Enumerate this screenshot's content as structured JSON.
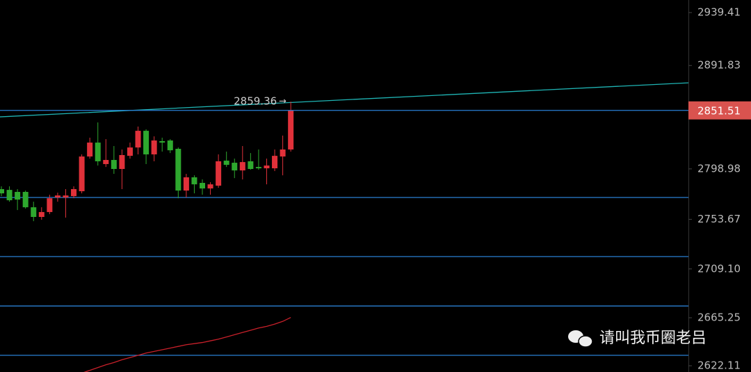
{
  "chart_data": {
    "type": "candlestick",
    "ylim": [
      2616.5,
      2950.7
    ],
    "yticks": [
      2939.41,
      2891.83,
      2798.98,
      2753.67,
      {
        "value": 2709.1,
        "label": "2709.10"
      },
      2665.25,
      2622.11
    ],
    "up_color": "#e0313a",
    "down_color": "#2ea82e",
    "candles": {
      "open": [
        2780.8,
        2780.1,
        2778.3,
        2778.3,
        2764.5,
        2755.8,
        2760.2,
        2773.3,
        2773.3,
        2774.5,
        2778.9,
        2810.1,
        2822.6,
        2803.3,
        2807.0,
        2798.9,
        2810.7,
        2818.2,
        2833.2,
        2812.0,
        2823.9,
        2824.5,
        2817.0,
        2779.5,
        2791.4,
        2786.4,
        2781.4,
        2783.9,
        2806.4,
        2804.5,
        2797.6,
        2805.8,
        2800.7,
        2799.5,
        2799.5,
        2810.1,
        2816.4
      ],
      "high": [
        2783.3,
        2783.3,
        2780.8,
        2779.5,
        2769.5,
        2764.5,
        2775.8,
        2777.6,
        2780.8,
        2783.3,
        2812.0,
        2827.0,
        2840.7,
        2825.7,
        2819.5,
        2816.4,
        2822.6,
        2837.0,
        2834.5,
        2828.2,
        2827.0,
        2825.7,
        2818.2,
        2794.5,
        2793.2,
        2789.5,
        2787.0,
        2812.0,
        2814.5,
        2808.2,
        2819.5,
        2813.2,
        2816.4,
        2808.2,
        2816.4,
        2828.9,
        2859.36
      ],
      "low": [
        2774.5,
        2769.5,
        2762.0,
        2763.3,
        2752.0,
        2753.3,
        2758.3,
        2769.5,
        2755.2,
        2772.6,
        2777.0,
        2808.2,
        2802.0,
        2800.7,
        2794.5,
        2780.8,
        2808.2,
        2812.0,
        2803.3,
        2805.8,
        2814.5,
        2813.2,
        2772.6,
        2773.3,
        2777.0,
        2775.8,
        2775.8,
        2782.0,
        2800.7,
        2790.7,
        2789.5,
        2798.2,
        2798.2,
        2785.1,
        2797.0,
        2793.2,
        2814.5
      ],
      "close": [
        2777.0,
        2770.8,
        2771.4,
        2764.5,
        2755.8,
        2760.2,
        2772.6,
        2775.1,
        2775.1,
        2780.8,
        2810.1,
        2822.6,
        2805.8,
        2807.0,
        2798.9,
        2811.4,
        2818.2,
        2833.2,
        2812.0,
        2824.5,
        2822.6,
        2815.7,
        2779.5,
        2791.4,
        2785.1,
        2781.4,
        2785.1,
        2805.8,
        2802.6,
        2797.6,
        2805.1,
        2798.9,
        2799.5,
        2802.0,
        2810.7,
        2816.4,
        2851.51
      ]
    },
    "moving_average": {
      "color": "#c8202a",
      "values": [
        null,
        null,
        null,
        null,
        null,
        null,
        null,
        null,
        null,
        null,
        2615.5,
        2618.0,
        2620.5,
        2623.0,
        2625.0,
        2627.5,
        2629.5,
        2631.5,
        2633.5,
        2635.0,
        2636.5,
        2638.0,
        2639.5,
        2641.0,
        2642.0,
        2643.0,
        2644.5,
        2646.0,
        2648.0,
        2650.0,
        2652.0,
        2654.0,
        2656.0,
        2657.5,
        2659.5,
        2662.0,
        2665.5
      ]
    },
    "horizontal_lines": {
      "color": "#2a7fd4",
      "values": [
        2773.3,
        2720.2,
        2675.8,
        2631.5
      ]
    },
    "trendline": {
      "color": "#1fb5b5",
      "values": [
        2845.7,
        2876.3
      ]
    },
    "price_label_color": "#d9534f",
    "watermark": "请叫我币圈老吕"
  }
}
